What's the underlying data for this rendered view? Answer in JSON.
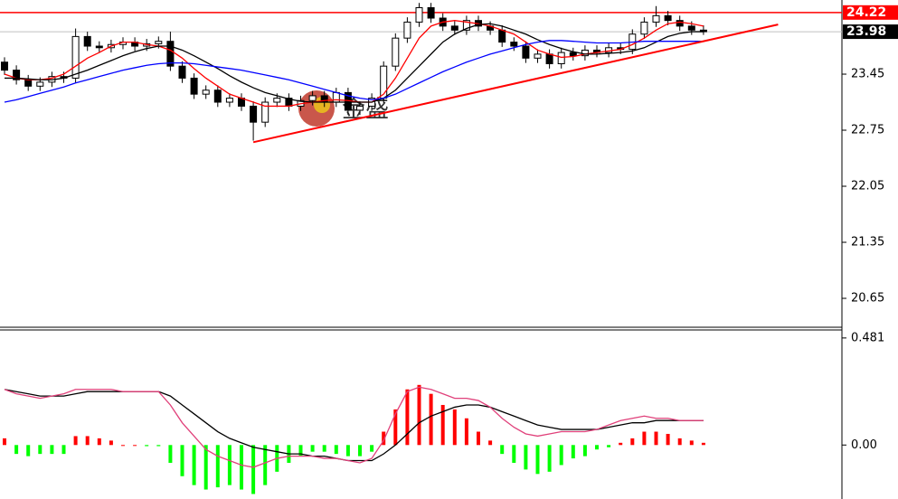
{
  "chart_data": [
    {
      "type": "candlestick",
      "open": [
        23.6,
        23.5,
        23.38,
        23.3,
        23.35,
        23.42,
        23.4,
        23.92,
        23.8,
        23.78,
        23.82,
        23.85,
        23.8,
        23.83,
        23.86,
        23.55,
        23.4,
        23.2,
        23.25,
        23.1,
        23.15,
        23.05,
        22.85,
        23.1,
        23.15,
        23.05,
        23.12,
        23.18,
        23.1,
        23.22,
        23.0,
        23.05,
        23.15,
        23.55,
        23.9,
        24.1,
        24.28,
        24.15,
        24.05,
        24.0,
        24.12,
        24.05,
        24.0,
        23.85,
        23.8,
        23.65,
        23.7,
        23.58,
        23.72,
        23.68,
        23.75,
        23.72,
        23.78,
        23.76,
        23.95,
        24.1,
        24.18,
        24.12,
        24.05,
        24.0
      ],
      "high": [
        23.66,
        23.56,
        23.44,
        23.41,
        23.48,
        23.48,
        24.02,
        23.98,
        23.86,
        23.88,
        23.91,
        23.91,
        23.89,
        23.92,
        23.98,
        23.61,
        23.46,
        23.31,
        23.31,
        23.21,
        23.21,
        23.11,
        23.16,
        23.21,
        23.21,
        23.18,
        23.24,
        23.24,
        23.28,
        23.28,
        23.11,
        23.21,
        23.61,
        23.96,
        24.16,
        24.34,
        24.34,
        24.21,
        24.11,
        24.18,
        24.18,
        24.11,
        24.06,
        23.91,
        23.86,
        23.76,
        23.76,
        23.78,
        23.78,
        23.81,
        23.81,
        23.84,
        23.84,
        24.01,
        24.16,
        24.3,
        24.24,
        24.18,
        24.11,
        24.06
      ],
      "low": [
        23.44,
        23.32,
        23.24,
        23.24,
        23.29,
        23.34,
        23.34,
        23.74,
        23.72,
        23.72,
        23.76,
        23.74,
        23.74,
        23.77,
        23.49,
        23.34,
        23.14,
        23.14,
        23.04,
        23.04,
        22.99,
        22.62,
        22.79,
        23.04,
        22.99,
        22.99,
        23.06,
        23.04,
        23.04,
        22.94,
        22.94,
        22.99,
        23.09,
        23.49,
        23.84,
        24.04,
        24.09,
        23.99,
        23.94,
        23.94,
        23.99,
        23.94,
        23.79,
        23.74,
        23.59,
        23.59,
        23.52,
        23.52,
        23.62,
        23.62,
        23.66,
        23.66,
        23.7,
        23.7,
        23.89,
        24.04,
        24.06,
        23.99,
        23.94,
        23.94
      ],
      "close": [
        23.5,
        23.38,
        23.3,
        23.35,
        23.42,
        23.4,
        23.92,
        23.8,
        23.78,
        23.82,
        23.85,
        23.8,
        23.83,
        23.86,
        23.55,
        23.4,
        23.2,
        23.25,
        23.1,
        23.15,
        23.05,
        22.85,
        23.1,
        23.15,
        23.05,
        23.12,
        23.18,
        23.1,
        23.22,
        23.0,
        23.05,
        23.15,
        23.55,
        23.9,
        24.1,
        24.28,
        24.15,
        24.05,
        24.0,
        24.12,
        24.05,
        24.0,
        23.85,
        23.8,
        23.65,
        23.7,
        23.58,
        23.72,
        23.68,
        23.75,
        23.72,
        23.78,
        23.76,
        23.95,
        24.1,
        24.18,
        24.12,
        24.05,
        24.0,
        23.98
      ],
      "up_color": "#ffffff",
      "down_color": "#000000",
      "series": [
        {
          "color": "#ff0000",
          "values": [
            23.45,
            23.4,
            23.38,
            23.38,
            23.4,
            23.45,
            23.55,
            23.65,
            23.72,
            23.8,
            23.85,
            23.85,
            23.82,
            23.8,
            23.75,
            23.65,
            23.52,
            23.4,
            23.3,
            23.2,
            23.15,
            23.1,
            23.05,
            23.05,
            23.05,
            23.08,
            23.1,
            23.12,
            23.13,
            23.12,
            23.1,
            23.1,
            23.2,
            23.4,
            23.65,
            23.9,
            24.05,
            24.1,
            24.12,
            24.1,
            24.08,
            24.05,
            24.0,
            23.95,
            23.85,
            23.75,
            23.7,
            23.66,
            23.67,
            23.7,
            23.72,
            23.74,
            23.76,
            23.82,
            23.9,
            24.0,
            24.08,
            24.1,
            24.08,
            24.05
          ]
        },
        {
          "color": "#000000",
          "values": [
            23.4,
            23.4,
            23.39,
            23.38,
            23.38,
            23.4,
            23.45,
            23.5,
            23.56,
            23.62,
            23.68,
            23.73,
            23.77,
            23.8,
            23.8,
            23.75,
            23.68,
            23.6,
            23.52,
            23.43,
            23.35,
            23.28,
            23.22,
            23.18,
            23.14,
            23.11,
            23.1,
            23.1,
            23.1,
            23.1,
            23.1,
            23.1,
            23.15,
            23.25,
            23.4,
            23.55,
            23.7,
            23.85,
            23.95,
            24.02,
            24.07,
            24.08,
            24.05,
            24.0,
            23.95,
            23.88,
            23.82,
            23.77,
            23.73,
            23.7,
            23.7,
            23.71,
            23.72,
            23.74,
            23.78,
            23.85,
            23.92,
            23.96,
            23.98,
            23.98
          ]
        },
        {
          "color": "#0000ff",
          "values": [
            23.1,
            23.13,
            23.17,
            23.21,
            23.25,
            23.29,
            23.34,
            23.38,
            23.42,
            23.46,
            23.5,
            23.53,
            23.56,
            23.58,
            23.59,
            23.59,
            23.58,
            23.56,
            23.54,
            23.52,
            23.5,
            23.47,
            23.44,
            23.41,
            23.38,
            23.34,
            23.3,
            23.26,
            23.22,
            23.18,
            23.15,
            23.13,
            23.15,
            23.2,
            23.27,
            23.34,
            23.41,
            23.48,
            23.54,
            23.6,
            23.65,
            23.7,
            23.74,
            23.78,
            23.82,
            23.85,
            23.87,
            23.87,
            23.86,
            23.85,
            23.84,
            23.84,
            23.84,
            23.85,
            23.86,
            23.86,
            23.86,
            23.86,
            23.86,
            23.86
          ]
        }
      ],
      "trendline": {
        "color": "#ff0000",
        "x": [
          21.0,
          65.3
        ],
        "y": [
          22.6,
          24.07
        ]
      },
      "price_lines": [
        {
          "value": 24.22,
          "color": "#ff0000"
        },
        {
          "value": 23.98,
          "color": "#000000"
        }
      ],
      "watermark": "金盛",
      "ylim": [
        20.289,
        24.376
      ],
      "yticks": [
        20.65,
        21.35,
        22.05,
        22.75,
        23.45
      ]
    },
    {
      "type": "macd",
      "values": [
        0.03,
        -0.04,
        -0.05,
        -0.04,
        -0.04,
        -0.04,
        0.04,
        0.04,
        0.03,
        0.02,
        0.0,
        0.0,
        -0.005,
        -0.005,
        -0.08,
        -0.14,
        -0.18,
        -0.2,
        -0.19,
        -0.18,
        -0.2,
        -0.22,
        -0.18,
        -0.12,
        -0.08,
        -0.05,
        -0.03,
        -0.03,
        -0.04,
        -0.05,
        -0.05,
        -0.03,
        0.06,
        0.16,
        0.25,
        0.27,
        0.23,
        0.18,
        0.16,
        0.12,
        0.06,
        0.02,
        -0.04,
        -0.08,
        -0.11,
        -0.13,
        -0.12,
        -0.09,
        -0.06,
        -0.05,
        -0.02,
        -0.01,
        0.01,
        0.03,
        0.06,
        0.06,
        0.05,
        0.03,
        0.02,
        0.01
      ],
      "positive_color": "#ff0000",
      "negative_color": "#00ff00",
      "series": [
        {
          "color": "#000000",
          "values": [
            0.25,
            0.24,
            0.23,
            0.22,
            0.22,
            0.22,
            0.23,
            0.24,
            0.24,
            0.24,
            0.24,
            0.24,
            0.24,
            0.24,
            0.22,
            0.18,
            0.14,
            0.1,
            0.06,
            0.03,
            0.01,
            -0.01,
            -0.02,
            -0.03,
            -0.04,
            -0.04,
            -0.05,
            -0.05,
            -0.06,
            -0.07,
            -0.07,
            -0.07,
            -0.04,
            0.0,
            0.05,
            0.1,
            0.13,
            0.15,
            0.17,
            0.18,
            0.18,
            0.17,
            0.15,
            0.13,
            0.11,
            0.09,
            0.08,
            0.07,
            0.07,
            0.07,
            0.07,
            0.08,
            0.09,
            0.1,
            0.1,
            0.11,
            0.11,
            0.11,
            0.11,
            0.11
          ]
        },
        {
          "color": "#e0407a",
          "values": [
            0.25,
            0.23,
            0.22,
            0.21,
            0.22,
            0.23,
            0.25,
            0.25,
            0.25,
            0.25,
            0.24,
            0.24,
            0.24,
            0.24,
            0.18,
            0.1,
            0.04,
            -0.02,
            -0.05,
            -0.07,
            -0.09,
            -0.1,
            -0.08,
            -0.06,
            -0.05,
            -0.05,
            -0.05,
            -0.06,
            -0.06,
            -0.07,
            -0.08,
            -0.06,
            0.02,
            0.14,
            0.24,
            0.26,
            0.25,
            0.23,
            0.21,
            0.21,
            0.2,
            0.17,
            0.12,
            0.08,
            0.05,
            0.04,
            0.05,
            0.06,
            0.06,
            0.06,
            0.07,
            0.09,
            0.11,
            0.12,
            0.13,
            0.12,
            0.12,
            0.11,
            0.11,
            0.11
          ]
        }
      ],
      "ylim": [
        -0.2425,
        0.517
      ],
      "yticks": [
        {
          "value": 0,
          "label": "0.00"
        },
        0.481
      ]
    }
  ]
}
